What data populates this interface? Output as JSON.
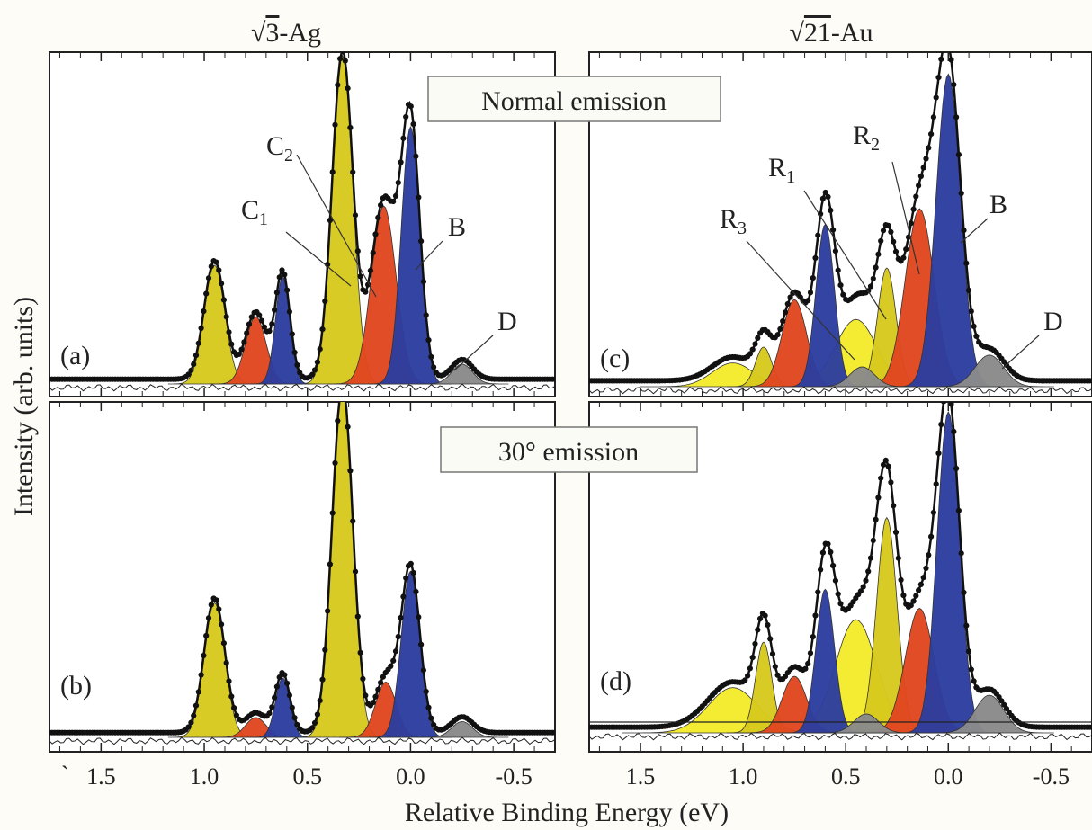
{
  "figure": {
    "ylabel": "Intensity (arb. units)",
    "xlabel": "Relative Binding Energy (eV)",
    "columns": [
      {
        "title_sqrt": "3",
        "title_suffix": "-Ag"
      },
      {
        "title_sqrt": "21",
        "title_suffix": "-Au"
      }
    ],
    "row_labels": [
      "Normal emission",
      "30° emission"
    ],
    "stray_mark": "`"
  },
  "colors": {
    "yellow": "#d8c91e",
    "bright_yellow": "#f4ea2c",
    "red": "#e0471f",
    "blue": "#2d3e9f",
    "gray": "#8a8a8a",
    "data": "#111111"
  },
  "chart_data": [
    {
      "id": "a",
      "panel_label": "(a)",
      "type": "area",
      "xlim": [
        1.75,
        -0.7
      ],
      "x_ticks": [
        1.5,
        1.0,
        0.5,
        0.0,
        -0.5
      ],
      "x_tick_labels": [
        "1.5",
        "1.0",
        "0.5",
        "0.0",
        "-0.5"
      ],
      "annotations": [
        {
          "base": "C",
          "sub": "2",
          "target": "C2"
        },
        {
          "base": "C",
          "sub": "1",
          "target": "C1"
        },
        {
          "base": "B",
          "sub": "",
          "target": "B"
        },
        {
          "base": "D",
          "sub": "",
          "target": "D"
        }
      ],
      "series": [
        {
          "name": "C2",
          "color": "yellow",
          "peaks": [
            [
              0.95,
              0.3,
              0.05
            ],
            [
              0.33,
              0.83,
              0.05
            ]
          ]
        },
        {
          "name": "C1",
          "color": "red",
          "peaks": [
            [
              0.75,
              0.17,
              0.05
            ],
            [
              0.13,
              0.45,
              0.06
            ]
          ]
        },
        {
          "name": "B",
          "color": "blue",
          "peaks": [
            [
              0.62,
              0.27,
              0.035
            ],
            [
              0.0,
              0.65,
              0.045
            ]
          ]
        },
        {
          "name": "D",
          "color": "gray",
          "peaks": [
            [
              -0.25,
              0.05,
              0.05
            ]
          ]
        }
      ]
    },
    {
      "id": "b",
      "panel_label": "(b)",
      "type": "area",
      "xlim": [
        1.75,
        -0.7
      ],
      "x_ticks": [
        1.5,
        1.0,
        0.5,
        0.0,
        -0.5
      ],
      "x_tick_labels": [
        "1.5",
        "1.0",
        "0.5",
        "0.0",
        "-0.5"
      ],
      "annotations": [],
      "series": [
        {
          "name": "C2",
          "color": "yellow",
          "peaks": [
            [
              0.95,
              0.34,
              0.05
            ],
            [
              0.33,
              0.88,
              0.05
            ]
          ]
        },
        {
          "name": "C1",
          "color": "red",
          "peaks": [
            [
              0.75,
              0.05,
              0.05
            ],
            [
              0.12,
              0.14,
              0.05
            ]
          ]
        },
        {
          "name": "B",
          "color": "blue",
          "peaks": [
            [
              0.62,
              0.15,
              0.035
            ],
            [
              0.0,
              0.42,
              0.045
            ]
          ]
        },
        {
          "name": "D",
          "color": "gray",
          "peaks": [
            [
              -0.25,
              0.04,
              0.05
            ]
          ]
        }
      ]
    },
    {
      "id": "c",
      "panel_label": "(c)",
      "type": "area",
      "xlim": [
        1.75,
        -0.7
      ],
      "x_ticks": [
        1.5,
        1.0,
        0.5,
        0.0,
        -0.5
      ],
      "x_tick_labels": [
        "1.5",
        "1.0",
        "0.5",
        "0.0",
        "-0.5"
      ],
      "annotations": [
        {
          "base": "R",
          "sub": "2",
          "target": "R2"
        },
        {
          "base": "R",
          "sub": "1",
          "target": "R1"
        },
        {
          "base": "R",
          "sub": "3",
          "target": "R3"
        },
        {
          "base": "B",
          "sub": "",
          "target": "B"
        },
        {
          "base": "D",
          "sub": "",
          "target": "D"
        }
      ],
      "series": [
        {
          "name": "R1",
          "color": "yellow",
          "peaks": [
            [
              0.9,
              0.1,
              0.04
            ],
            [
              0.3,
              0.3,
              0.045
            ]
          ]
        },
        {
          "name": "R2",
          "color": "red",
          "peaks": [
            [
              0.75,
              0.22,
              0.06
            ],
            [
              0.14,
              0.45,
              0.07
            ]
          ]
        },
        {
          "name": "B",
          "color": "blue",
          "peaks": [
            [
              0.6,
              0.41,
              0.045
            ],
            [
              0.0,
              0.79,
              0.06
            ]
          ]
        },
        {
          "name": "R3",
          "color": "bright_yellow",
          "peaks": [
            [
              1.05,
              0.06,
              0.1
            ],
            [
              0.45,
              0.17,
              0.1
            ]
          ]
        },
        {
          "name": "D",
          "color": "gray",
          "peaks": [
            [
              0.42,
              0.05,
              0.06
            ],
            [
              -0.2,
              0.08,
              0.07
            ]
          ]
        }
      ]
    },
    {
      "id": "d",
      "panel_label": "(d)",
      "type": "area",
      "xlim": [
        1.75,
        -0.7
      ],
      "x_ticks": [
        1.5,
        1.0,
        0.5,
        0.0,
        -0.5
      ],
      "x_tick_labels": [
        "1.5",
        "1.0",
        "0.5",
        "0.0",
        "-0.5"
      ],
      "annotations": [],
      "series": [
        {
          "name": "R1",
          "color": "yellow",
          "peaks": [
            [
              0.9,
              0.24,
              0.04
            ],
            [
              0.3,
              0.57,
              0.05
            ]
          ]
        },
        {
          "name": "R2",
          "color": "red",
          "peaks": [
            [
              0.75,
              0.15,
              0.06
            ],
            [
              0.14,
              0.33,
              0.07
            ]
          ]
        },
        {
          "name": "B",
          "color": "blue",
          "peaks": [
            [
              0.6,
              0.38,
              0.045
            ],
            [
              0.0,
              0.85,
              0.055
            ]
          ]
        },
        {
          "name": "R3",
          "color": "bright_yellow",
          "peaks": [
            [
              1.05,
              0.12,
              0.12
            ],
            [
              0.45,
              0.3,
              0.1
            ]
          ]
        },
        {
          "name": "D",
          "color": "gray",
          "peaks": [
            [
              0.4,
              0.05,
              0.06
            ],
            [
              -0.2,
              0.1,
              0.07
            ]
          ]
        }
      ]
    }
  ]
}
